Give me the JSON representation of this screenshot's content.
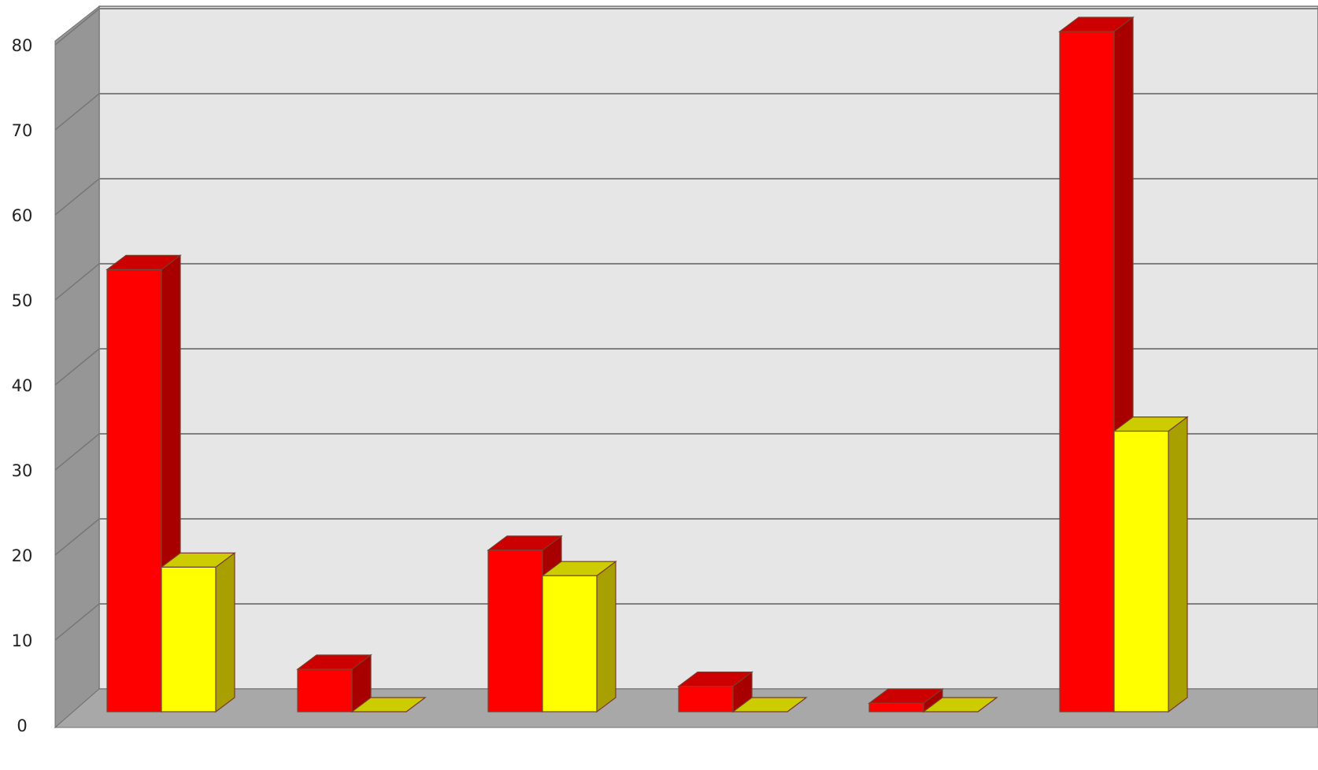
{
  "chart_data": {
    "type": "bar",
    "style": "3d-clustered-column",
    "categories": [
      "",
      "",
      "",
      "",
      "",
      ""
    ],
    "series": [
      {
        "values": [
          52,
          5,
          19,
          3,
          1,
          80
        ],
        "color": "#ff0000",
        "side_color": "#a80000",
        "top_color": "#cc0000"
      },
      {
        "values": [
          17,
          0,
          16,
          0,
          0,
          33
        ],
        "color": "#ffff00",
        "side_color": "#a8a000",
        "top_color": "#cccc00"
      }
    ],
    "y_ticks": [
      "0",
      "10",
      "20",
      "30",
      "40",
      "50",
      "60",
      "70",
      "80"
    ],
    "ylim": [
      0,
      80
    ],
    "grid": true,
    "legend": "none",
    "colors": {
      "wall": "#e6e6e6",
      "side_wall": "#969696",
      "floor": "#a8a8a8",
      "gridline": "#808080"
    }
  }
}
